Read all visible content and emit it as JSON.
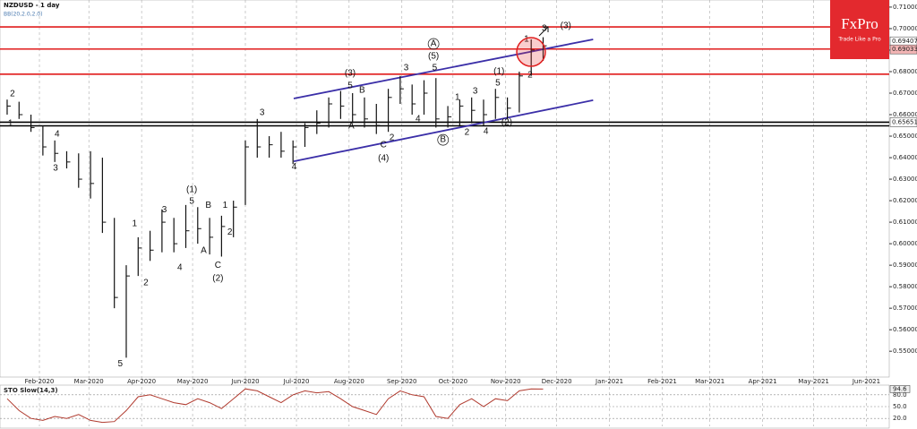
{
  "header": {
    "symbol_title": "NZDUSD - 1 day",
    "indicator": "BB(20,2.0,2.0)"
  },
  "logo": {
    "name": "FxPro",
    "tagline": "Trade Like a Pro"
  },
  "chart_data": [
    {
      "type": "ohlc",
      "color": "#111111",
      "xlim": [
        -0.6,
        74.06
      ],
      "ylim": [
        0.538,
        0.7133
      ],
      "high": [
        0.667,
        0.666,
        0.66,
        0.655,
        0.648,
        0.643,
        0.642,
        0.643,
        0.64,
        0.612,
        0.59,
        0.603,
        0.606,
        0.616,
        0.612,
        0.618,
        0.617,
        0.612,
        0.613,
        0.62,
        0.648,
        0.658,
        0.65,
        0.652,
        0.648,
        0.656,
        0.662,
        0.668,
        0.671,
        0.67,
        0.668,
        0.665,
        0.672,
        0.678,
        0.674,
        0.676,
        0.677,
        0.664,
        0.667,
        0.668,
        0.667,
        0.672,
        0.668,
        0.68,
        0.695,
        0.696
      ],
      "low": [
        0.66,
        0.658,
        0.652,
        0.641,
        0.638,
        0.635,
        0.626,
        0.621,
        0.605,
        0.57,
        0.547,
        0.585,
        0.592,
        0.596,
        0.596,
        0.598,
        0.6,
        0.595,
        0.594,
        0.603,
        0.618,
        0.64,
        0.64,
        0.64,
        0.637,
        0.645,
        0.651,
        0.654,
        0.658,
        0.656,
        0.654,
        0.651,
        0.652,
        0.665,
        0.66,
        0.66,
        0.654,
        0.654,
        0.655,
        0.656,
        0.655,
        0.658,
        0.658,
        0.661,
        0.678,
        0.685
      ],
      "close": [
        0.664,
        0.66,
        0.654,
        0.645,
        0.642,
        0.638,
        0.63,
        0.628,
        0.61,
        0.575,
        0.585,
        0.598,
        0.597,
        0.61,
        0.6,
        0.606,
        0.607,
        0.603,
        0.608,
        0.617,
        0.645,
        0.645,
        0.646,
        0.643,
        0.645,
        0.654,
        0.656,
        0.665,
        0.664,
        0.66,
        0.658,
        0.655,
        0.668,
        0.672,
        0.665,
        0.67,
        0.658,
        0.659,
        0.664,
        0.662,
        0.66,
        0.668,
        0.663,
        0.678,
        0.69,
        0.692
      ],
      "yticks": [
        {
          "value": 0.71,
          "label": "0.71000"
        },
        {
          "value": 0.7,
          "label": "0.70000"
        },
        {
          "value": 0.69,
          "label": "0.69000"
        },
        {
          "value": 0.68,
          "label": "0.68000"
        },
        {
          "value": 0.67,
          "label": "0.67000"
        },
        {
          "value": 0.66,
          "label": "0.66000"
        },
        {
          "value": 0.65,
          "label": "0.65000"
        },
        {
          "value": 0.64,
          "label": "0.64000"
        },
        {
          "value": 0.63,
          "label": "0.63000"
        },
        {
          "value": 0.62,
          "label": "0.62000"
        },
        {
          "value": 0.61,
          "label": "0.61000"
        },
        {
          "value": 0.6,
          "label": "0.60000"
        },
        {
          "value": 0.59,
          "label": "0.59000"
        },
        {
          "value": 0.58,
          "label": "0.58000"
        },
        {
          "value": 0.57,
          "label": "0.57000"
        },
        {
          "value": 0.56,
          "label": "0.56000"
        },
        {
          "value": 0.55,
          "label": "0.55000"
        }
      ],
      "xticks": [
        {
          "value": 2.71,
          "label": "Feb-2020"
        },
        {
          "value": 6.86,
          "label": "Mar-2020"
        },
        {
          "value": 11.29,
          "label": "Apr-2020"
        },
        {
          "value": 15.57,
          "label": "May-2020"
        },
        {
          "value": 20,
          "label": "Jun-2020"
        },
        {
          "value": 24.29,
          "label": "Jul-2020"
        },
        {
          "value": 28.71,
          "label": "Aug-2020"
        },
        {
          "value": 33.14,
          "label": "Sep-2020"
        },
        {
          "value": 37.43,
          "label": "Oct-2020"
        },
        {
          "value": 41.86,
          "label": "Nov-2020"
        },
        {
          "value": 46.14,
          "label": "Dec-2020"
        },
        {
          "value": 50.57,
          "label": "Jan-2021"
        },
        {
          "value": 55,
          "label": "Feb-2021"
        },
        {
          "value": 59,
          "label": "Mar-2021"
        },
        {
          "value": 63.43,
          "label": "Apr-2021"
        },
        {
          "value": 67.71,
          "label": "May-2021"
        },
        {
          "value": 72.14,
          "label": "Jun-2021"
        }
      ],
      "price_markers": [
        {
          "value": 0.69407,
          "label": "0.69407",
          "color": "#ffffff"
        },
        {
          "value": 0.69033,
          "label": "0.69033",
          "color": "#f3b5b5"
        },
        {
          "value": 0.65651,
          "label": "0.65651",
          "color": "#ffffff"
        }
      ],
      "hlines": [
        {
          "value": 0.7008,
          "color": "#e01b1b"
        },
        {
          "value": 0.6905,
          "color": "#e01b1b"
        },
        {
          "value": 0.6788,
          "color": "#e01b1b"
        },
        {
          "value": 0.6565,
          "color": "#000000"
        },
        {
          "value": 0.6548,
          "color": "#000000"
        }
      ],
      "trend_lines": [
        {
          "x": [
            24.06,
            49.2
          ],
          "values": [
            0.6675,
            0.695
          ],
          "color": "#3b2fa8"
        },
        {
          "x": [
            24.06,
            49.2
          ],
          "values": [
            0.6383,
            0.6667
          ],
          "color": "#3b2fa8"
        }
      ],
      "annotations": [
        {
          "text": "2",
          "x": 0.45,
          "y": 0.6696
        },
        {
          "text": "1",
          "x": 0.28,
          "y": 0.6558
        },
        {
          "text": "4",
          "x": 4.2,
          "y": 0.6508
        },
        {
          "text": "3",
          "x": 4.06,
          "y": 0.635
        },
        {
          "text": "5",
          "x": 9.5,
          "y": 0.5442
        },
        {
          "text": "2",
          "x": 11.65,
          "y": 0.5817
        },
        {
          "text": "1",
          "x": 10.7,
          "y": 0.6092
        },
        {
          "text": "3",
          "x": 13.2,
          "y": 0.6158
        },
        {
          "text": "4",
          "x": 14.5,
          "y": 0.5888
        },
        {
          "text": "(1)",
          "x": 15.5,
          "y": 0.625
        },
        {
          "text": "5",
          "x": 15.5,
          "y": 0.6196
        },
        {
          "text": "B",
          "x": 16.9,
          "y": 0.6179
        },
        {
          "text": "A",
          "x": 16.5,
          "y": 0.5967
        },
        {
          "text": "C",
          "x": 17.7,
          "y": 0.59
        },
        {
          "text": "(2)",
          "x": 17.7,
          "y": 0.5838
        },
        {
          "text": "1",
          "x": 18.3,
          "y": 0.6179
        },
        {
          "text": "2",
          "x": 18.7,
          "y": 0.6054
        },
        {
          "text": "3",
          "x": 21.4,
          "y": 0.6608
        },
        {
          "text": "4",
          "x": 24.1,
          "y": 0.6358
        },
        {
          "text": "(3)",
          "x": 28.8,
          "y": 0.6792
        },
        {
          "text": "5",
          "x": 28.8,
          "y": 0.6733
        },
        {
          "text": "B",
          "x": 29.8,
          "y": 0.6713
        },
        {
          "text": "A",
          "x": 28.9,
          "y": 0.6546
        },
        {
          "text": "2",
          "x": 32.3,
          "y": 0.6492
        },
        {
          "text": "C",
          "x": 31.6,
          "y": 0.6458
        },
        {
          "text": "(4)",
          "x": 31.6,
          "y": 0.6396
        },
        {
          "text": "3",
          "x": 33.5,
          "y": 0.6817
        },
        {
          "text": "A",
          "x": 35.8,
          "y": 0.6929,
          "circled": true
        },
        {
          "text": "(5)",
          "x": 35.8,
          "y": 0.6871
        },
        {
          "text": "5",
          "x": 35.9,
          "y": 0.6817
        },
        {
          "text": "4",
          "x": 34.5,
          "y": 0.6579
        },
        {
          "text": "1",
          "x": 37.8,
          "y": 0.6679
        },
        {
          "text": "2",
          "x": 38.6,
          "y": 0.6517
        },
        {
          "text": "B",
          "x": 36.6,
          "y": 0.6483,
          "circled": true
        },
        {
          "text": "3",
          "x": 39.3,
          "y": 0.6708
        },
        {
          "text": "4",
          "x": 40.2,
          "y": 0.6521
        },
        {
          "text": "(1)",
          "x": 41.3,
          "y": 0.68
        },
        {
          "text": "5",
          "x": 41.2,
          "y": 0.6746
        },
        {
          "text": "(2)",
          "x": 41.95,
          "y": 0.6563
        },
        {
          "text": "1",
          "x": 43.6,
          "y": 0.695
        },
        {
          "text": "2",
          "x": 43.9,
          "y": 0.6783
        },
        {
          "text": "3",
          "x": 45.1,
          "y": 0.7
        },
        {
          "text": "(3)",
          "x": 46.9,
          "y": 0.7013
        }
      ]
    },
    {
      "type": "line",
      "title": "STO Slow(14,3)",
      "color": "#b03a2e",
      "xlim": [
        -0.6,
        74.06
      ],
      "ylim": [
        0,
        100
      ],
      "values": [
        70,
        40,
        20,
        15,
        25,
        20,
        30,
        15,
        10,
        12,
        40,
        75,
        80,
        70,
        60,
        55,
        70,
        60,
        45,
        70,
        95,
        90,
        75,
        60,
        80,
        90,
        85,
        88,
        70,
        50,
        40,
        30,
        70,
        90,
        80,
        75,
        25,
        20,
        55,
        70,
        50,
        70,
        65,
        90,
        95,
        94.6
      ],
      "yticks": [
        {
          "value": 80,
          "label": "80.0"
        },
        {
          "value": 50,
          "label": "50.0"
        },
        {
          "value": 20,
          "label": "20.0"
        }
      ],
      "current": {
        "value": 94.6,
        "label": "94.6"
      }
    }
  ]
}
